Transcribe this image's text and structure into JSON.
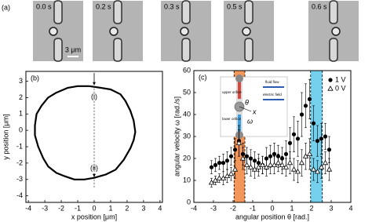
{
  "panel_a": {
    "label": "(a)",
    "frames": [
      "0.0 s",
      "0.2 s",
      "0.3 s",
      "0.5 s",
      "0.6 s"
    ],
    "scale_bar": "3 μm"
  },
  "chart_data": [
    {
      "type": "line",
      "panel_label": "(b)",
      "x_label": "x position [μm]",
      "y_label": "y position [μm]",
      "xlim": [
        -4.15,
        4.15
      ],
      "ylim": [
        -4.4,
        3.6
      ],
      "xticks": [
        -4,
        -3,
        -2,
        -1,
        0,
        1,
        2,
        3,
        4
      ],
      "yticks": [
        -4,
        -3,
        -2,
        -1,
        0,
        1,
        2,
        3
      ],
      "x": [
        -0.3,
        0.4,
        1.0,
        1.6,
        1.9,
        2.2,
        2.4,
        2.5,
        2.4,
        2.2,
        1.8,
        1.3,
        0.7,
        0.0,
        -0.6,
        -1.2,
        -1.8,
        -2.3,
        -2.8,
        -3.1,
        -3.4,
        -3.6,
        -3.6,
        -3.5,
        -3.2,
        -2.8,
        -2.3,
        -1.6,
        -1.0,
        -0.3
      ],
      "values": [
        2.7,
        2.6,
        2.5,
        2.2,
        1.8,
        1.2,
        0.6,
        -0.1,
        -0.6,
        -1.1,
        -1.8,
        -2.4,
        -2.7,
        -2.9,
        -3.0,
        -3.0,
        -2.8,
        -2.6,
        -2.2,
        -1.7,
        -1.0,
        -0.3,
        0.3,
        1.0,
        1.5,
        2.0,
        2.3,
        2.6,
        2.7,
        2.7
      ],
      "color": "#000000",
      "annotations": [
        "(i)",
        "(ii)"
      ]
    },
    {
      "type": "scatter",
      "panel_label": "(c)",
      "x_label": "angular position θ [rad.]",
      "y_label": "angular velocity ω [rad./s]",
      "xlim": [
        -4,
        4
      ],
      "ylim": [
        0,
        60
      ],
      "xticks": [
        -4,
        -3,
        -2,
        -1,
        0,
        1,
        2,
        3,
        4
      ],
      "yticks": [
        0,
        10,
        20,
        30,
        40,
        50,
        60
      ],
      "x": [
        -3.1,
        -2.9,
        -2.7,
        -2.5,
        -2.3,
        -2.1,
        -1.9,
        -1.7,
        -1.5,
        -1.3,
        -1.1,
        -0.9,
        -0.7,
        -0.5,
        -0.3,
        -0.1,
        0.1,
        0.3,
        0.5,
        0.7,
        0.9,
        1.1,
        1.3,
        1.5,
        1.7,
        1.9,
        2.1,
        2.3,
        2.5,
        2.7,
        2.9
      ],
      "series": [
        {
          "name": "1 V",
          "color": "#000000",
          "marker": "circle",
          "values": [
            16,
            17,
            18,
            18,
            19,
            21,
            24,
            28,
            22,
            21,
            20,
            19,
            18,
            17,
            20,
            21,
            22,
            21,
            20,
            22,
            27,
            31,
            29,
            40,
            44,
            47,
            36,
            28,
            29,
            30,
            24
          ],
          "errors": [
            3,
            3,
            3,
            4,
            4,
            4,
            5,
            7,
            5,
            4,
            4,
            4,
            4,
            4,
            5,
            5,
            5,
            5,
            5,
            6,
            7,
            8,
            8,
            10,
            10,
            9,
            8,
            7,
            7,
            6,
            6
          ]
        },
        {
          "name": "0 V",
          "color": "#000000",
          "marker": "triangle-open",
          "values": [
            9,
            10,
            11,
            11,
            12,
            13,
            15,
            27,
            20,
            17,
            16,
            15,
            16,
            17,
            16,
            17,
            17,
            18,
            17,
            16,
            18,
            15,
            14,
            18,
            21,
            22,
            15,
            14,
            16,
            18,
            15
          ],
          "errors": [
            2,
            2,
            2,
            3,
            3,
            3,
            4,
            6,
            5,
            4,
            4,
            4,
            4,
            4,
            4,
            4,
            4,
            4,
            4,
            4,
            5,
            5,
            5,
            6,
            6,
            7,
            5,
            5,
            5,
            5,
            5
          ]
        }
      ],
      "bands": [
        {
          "xlim": [
            -1.95,
            -1.4
          ],
          "color": "#f0843c"
        },
        {
          "xlim": [
            1.95,
            2.55
          ],
          "color": "#5cc8ea"
        }
      ],
      "inset": {
        "upper": "upper orifice",
        "lower": "lower orifice",
        "flow": "fluid flow",
        "field": "electric field",
        "angle": "θ",
        "axis": "x",
        "rate": "ω"
      },
      "legend": "upper right"
    }
  ]
}
